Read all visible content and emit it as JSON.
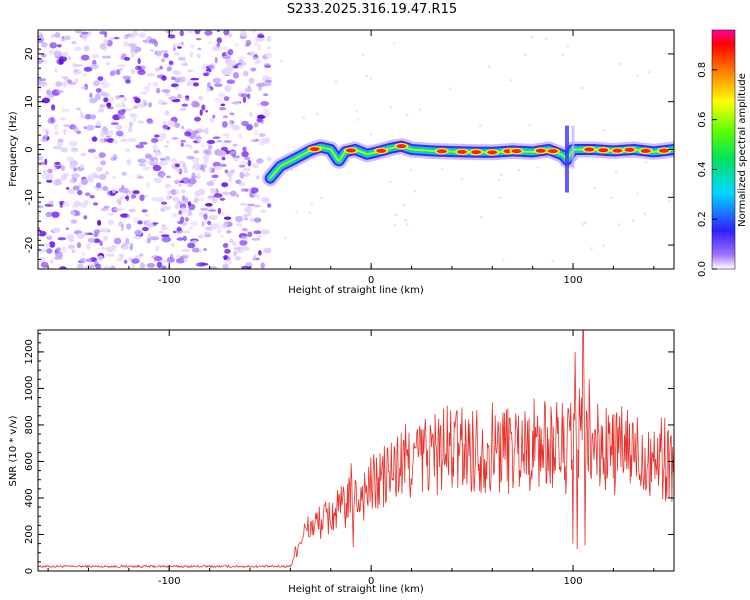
{
  "title": "S233.2025.316.19.47.R15",
  "chart_data": [
    {
      "type": "heatmap",
      "name": "spectrogram",
      "xlabel": "Height of straight line (km)",
      "ylabel": "Frequency (Hz)",
      "xlim": [
        -165,
        150
      ],
      "ylim": [
        -25,
        25
      ],
      "xticks": [
        -100,
        0,
        100
      ],
      "yticks": [
        -20,
        -10,
        0,
        10,
        20
      ],
      "x_noise_end": -50,
      "ridge_frequency": [
        [
          -50,
          -6
        ],
        [
          -45,
          -3.5
        ],
        [
          -38,
          -2
        ],
        [
          -30,
          -0.2
        ],
        [
          -25,
          0.5
        ],
        [
          -20,
          0
        ],
        [
          -16,
          -2.5
        ],
        [
          -13,
          -0.5
        ],
        [
          -8,
          0
        ],
        [
          -2,
          -1
        ],
        [
          3,
          -0.5
        ],
        [
          10,
          0.3
        ],
        [
          15,
          0.7
        ],
        [
          20,
          0
        ],
        [
          30,
          -0.3
        ],
        [
          45,
          -0.5
        ],
        [
          60,
          -0.6
        ],
        [
          70,
          -0.3
        ],
        [
          80,
          -0.5
        ],
        [
          88,
          0
        ],
        [
          95,
          -1.2
        ],
        [
          97,
          -2.2
        ],
        [
          100,
          0
        ],
        [
          110,
          0
        ],
        [
          120,
          -0.3
        ],
        [
          130,
          0
        ],
        [
          140,
          -0.5
        ],
        [
          150,
          0
        ]
      ],
      "hot_spots": [
        -28,
        -10,
        5,
        15,
        35,
        45,
        52,
        60,
        68,
        72,
        84,
        90,
        108,
        115,
        122,
        128,
        136,
        145
      ],
      "colorbar": {
        "label": "Normalized spectral amplitude",
        "range": [
          0,
          0.96
        ],
        "ticks": [
          "0.0",
          "0.2",
          "0.4",
          "0.6",
          "0.8"
        ]
      }
    },
    {
      "type": "line",
      "name": "snr",
      "xlabel": "Height of straight line (km)",
      "ylabel": "SNR (10 * v/v)",
      "xlim": [
        -165,
        150
      ],
      "ylim": [
        0,
        1320
      ],
      "xticks": [
        -100,
        0,
        100
      ],
      "yticks": [
        0,
        200,
        400,
        600,
        800,
        1000,
        1200
      ],
      "color": "#e8302a",
      "envelope": [
        [
          -165,
          25
        ],
        [
          -40,
          25
        ],
        [
          -37,
          120
        ],
        [
          -34,
          200
        ],
        [
          -30,
          240
        ],
        [
          -25,
          270
        ],
        [
          -20,
          300
        ],
        [
          -15,
          340
        ],
        [
          -10,
          380
        ],
        [
          -5,
          420
        ],
        [
          0,
          460
        ],
        [
          5,
          500
        ],
        [
          10,
          540
        ],
        [
          15,
          580
        ],
        [
          20,
          610
        ],
        [
          25,
          630
        ],
        [
          30,
          650
        ],
        [
          40,
          665
        ],
        [
          50,
          670
        ],
        [
          60,
          675
        ],
        [
          70,
          680
        ],
        [
          80,
          690
        ],
        [
          90,
          690
        ],
        [
          95,
          680
        ],
        [
          100,
          650
        ],
        [
          110,
          670
        ],
        [
          120,
          660
        ],
        [
          130,
          650
        ],
        [
          140,
          630
        ],
        [
          150,
          600
        ]
      ],
      "spikes": [
        [
          -10,
          590
        ],
        [
          -9,
          130
        ],
        [
          97,
          780
        ],
        [
          99,
          920
        ],
        [
          100,
          150
        ],
        [
          101,
          1200
        ],
        [
          102,
          120
        ],
        [
          103,
          1000
        ],
        [
          104,
          950
        ],
        [
          105,
          1320
        ],
        [
          106,
          140
        ],
        [
          107,
          860
        ],
        [
          108,
          1050
        ]
      ]
    }
  ]
}
